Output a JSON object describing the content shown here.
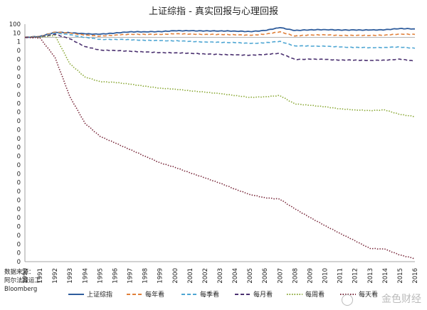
{
  "chart_data": {
    "type": "line",
    "title": "上证综指 - 真实回报与心理回报",
    "yscale": "log",
    "y_tick_labels": [
      "100",
      "10",
      "1",
      "0",
      "0",
      "0",
      "0",
      "0",
      "0",
      "0",
      "0",
      "0",
      "0",
      "0",
      "0",
      "0",
      "0",
      "0",
      "0",
      "0",
      "0",
      "0",
      "0",
      "0",
      "0",
      "0",
      "0",
      "0"
    ],
    "x_labels": [
      "1990",
      "1991",
      "1992",
      "1993",
      "1994",
      "1995",
      "1996",
      "1997",
      "1998",
      "1999",
      "2000",
      "2001",
      "2002",
      "2003",
      "2004",
      "2005",
      "2006",
      "2007",
      "2008",
      "2009",
      "2010",
      "2011",
      "2012",
      "2013",
      "2014",
      "2015",
      "2016"
    ],
    "reference_line_value": 1,
    "legend_placement": "bottom",
    "series": [
      {
        "name": "上证综指",
        "color": "#2e5c9c",
        "style": "solid",
        "values": [
          1,
          1.4,
          6,
          5,
          3.5,
          3,
          4.5,
          7,
          7,
          7.5,
          10,
          10,
          9.5,
          9.5,
          9,
          7.5,
          11,
          30,
          11,
          14,
          15,
          13,
          13,
          13,
          14,
          22,
          19
        ]
      },
      {
        "name": "每年看",
        "color": "#e0803a",
        "style": "dash",
        "values": [
          1,
          1.4,
          6,
          4.5,
          2.2,
          1.6,
          2.2,
          3,
          2.8,
          2.8,
          3.5,
          3.2,
          2.8,
          2.8,
          2.5,
          2.1,
          3,
          7,
          1.6,
          2.4,
          2.4,
          2.0,
          2.0,
          2.0,
          2.2,
          3.2,
          2.8
        ]
      },
      {
        "name": "每季看",
        "color": "#4ea6d3",
        "style": "dash",
        "values": [
          1,
          1.2,
          4.5,
          2.5,
          1,
          0.5,
          0.5,
          0.45,
          0.35,
          0.32,
          0.3,
          0.25,
          0.2,
          0.18,
          0.16,
          0.12,
          0.15,
          0.25,
          0.05,
          0.05,
          0.045,
          0.035,
          0.03,
          0.028,
          0.03,
          0.035,
          0.022
        ]
      },
      {
        "name": "每月看",
        "color": "#4b3170",
        "style": "dash",
        "values": [
          1,
          1.1,
          3,
          0.6,
          0.04,
          0.012,
          0.01,
          0.008,
          0.006,
          0.005,
          0.0045,
          0.004,
          0.003,
          0.0026,
          0.0022,
          0.002,
          0.0025,
          0.004,
          0.00045,
          0.0005,
          0.00045,
          0.00036,
          0.00036,
          0.00032,
          0.00035,
          0.0005,
          0.00025
        ]
      },
      {
        "name": "每周看",
        "color": "#8aa835",
        "style": "dot",
        "values": [
          1,
          1.05,
          2,
          0.0001,
          1e-06,
          2e-07,
          1.5e-07,
          8e-08,
          4e-08,
          2e-08,
          1.4e-08,
          8e-09,
          5e-09,
          3e-09,
          1.5e-09,
          8e-10,
          1e-09,
          1.5e-09,
          8e-11,
          5e-11,
          3e-11,
          1.5e-11,
          1e-11,
          8e-12,
          1e-11,
          2e-12,
          1e-12
        ]
      },
      {
        "name": "每天看",
        "color": "#7a2a3c",
        "style": "dot",
        "values": [
          1,
          0.8,
          0.001,
          1e-09,
          1e-13,
          1e-15,
          1e-16,
          1e-17,
          1e-18,
          1e-19,
          2e-20,
          3e-21,
          5e-22,
          8e-23,
          1e-23,
          1.5e-24,
          5e-25,
          3e-25,
          1e-26,
          5e-28,
          3e-29,
          2e-30,
          1.5e-31,
          1e-32,
          8e-33,
          1e-33,
          3e-34
        ]
      }
    ]
  },
  "source": {
    "line1": "数据来源：",
    "line2": "阿尔法搬运工",
    "line3": "Bloomberg"
  },
  "watermark": {
    "text": "金色财经"
  }
}
